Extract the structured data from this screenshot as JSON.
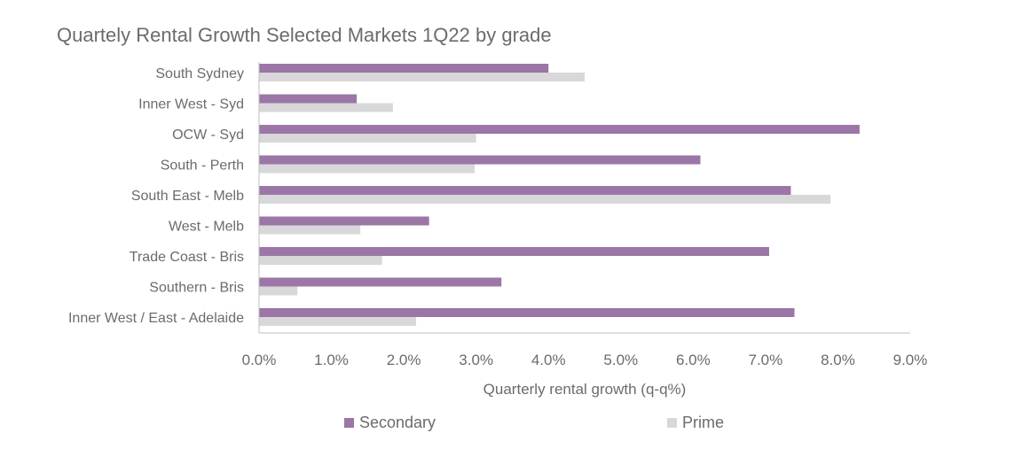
{
  "chart_data": {
    "type": "bar",
    "orientation": "horizontal",
    "title": "Quartely Rental Growth Selected Markets 1Q22 by grade",
    "xlabel": "Quarterly rental growth (q-q%)",
    "ylabel": "",
    "xlim": [
      0,
      9
    ],
    "x_ticks": [
      "0.0%",
      "1.0%",
      "2.0%",
      "3.0%",
      "4.0%",
      "5.0%",
      "6.0%",
      "7.0%",
      "8.0%",
      "9.0%"
    ],
    "grid": false,
    "legend_position": "bottom",
    "categories": [
      "South Sydney",
      "Inner West - Syd",
      "OCW - Syd",
      "South - Perth",
      "South East - Melb",
      "West - Melb",
      "Trade Coast - Bris",
      "Southern - Bris",
      "Inner West / East - Adelaide"
    ],
    "series": [
      {
        "name": "Secondary",
        "color": "#9b76a6",
        "values": [
          4.0,
          1.35,
          8.3,
          6.1,
          7.35,
          2.35,
          7.05,
          3.35,
          7.4
        ]
      },
      {
        "name": "Prime",
        "color": "#d8d8da",
        "values": [
          4.5,
          1.85,
          3.0,
          2.98,
          7.9,
          1.4,
          1.7,
          0.53,
          2.17
        ]
      }
    ]
  }
}
